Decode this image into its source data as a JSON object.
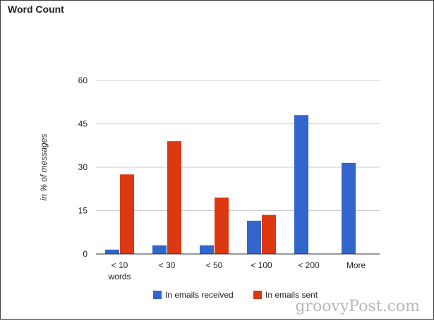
{
  "chart_data": {
    "type": "bar",
    "title": "Word Count",
    "ylabel": "in % of messages",
    "xlabel": "",
    "categories": [
      [
        "< 10",
        "words"
      ],
      [
        "< 30"
      ],
      [
        "< 50"
      ],
      [
        "< 100"
      ],
      [
        "< 200"
      ],
      [
        "More"
      ]
    ],
    "series": [
      {
        "name": "In emails received",
        "color": "#3366cc",
        "values": [
          1.5,
          3,
          3,
          11.5,
          48,
          31.5
        ]
      },
      {
        "name": "In emails sent",
        "color": "#dc3912",
        "values": [
          27.5,
          39,
          19.5,
          13.5,
          0,
          0
        ]
      }
    ],
    "ylim": [
      0,
      60
    ],
    "yticks": [
      0,
      15,
      30,
      45,
      60
    ],
    "grid": true,
    "legend_position": "bottom"
  },
  "watermark": "groovyPost.com"
}
